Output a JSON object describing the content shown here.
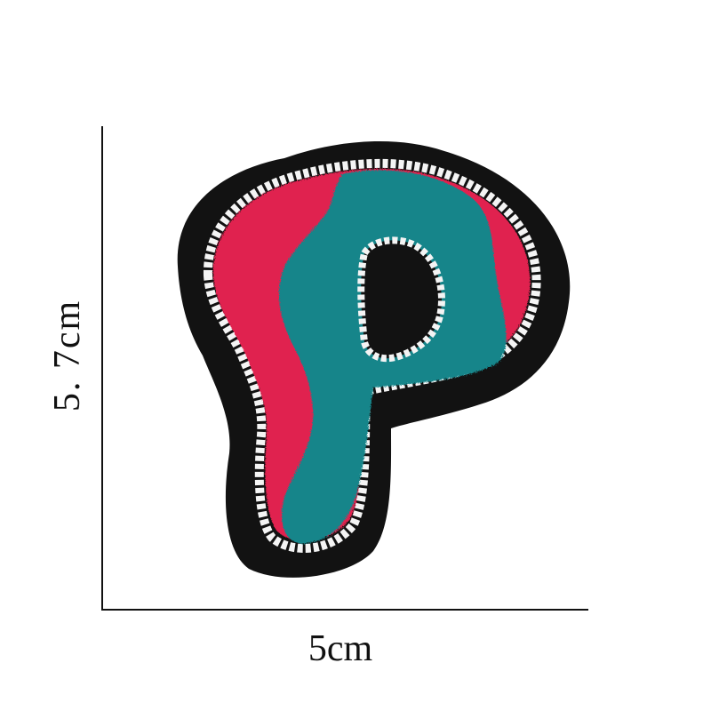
{
  "dimensions": {
    "height_label": "5. 7cm",
    "width_label": "5cm"
  },
  "patch": {
    "icon": "letter-p-chenille-patch",
    "colors": {
      "felt_border": "#121212",
      "stitch": "#f4f4f4",
      "teal": "#17858a",
      "red": "#e0244f",
      "background": "#ffffff"
    }
  }
}
